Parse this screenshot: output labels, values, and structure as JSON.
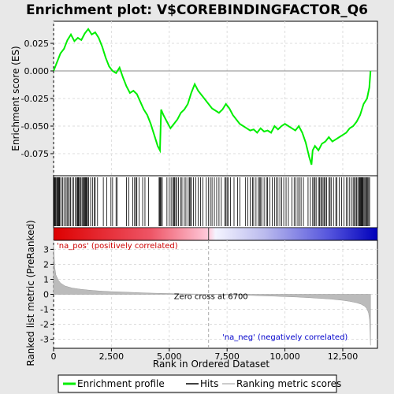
{
  "chart_data": {
    "type": "line",
    "title": "Enrichment plot: V$COREBINDINGFACTOR_Q6",
    "xlabel": "Rank in Ordered Dataset",
    "ylabel_top": "Enrichment score (ES)",
    "ylabel_bottom": "Ranked list metric (PreRanked)",
    "xlim": [
      0,
      14000
    ],
    "x_ticks": [
      0,
      2500,
      5000,
      7500,
      10000,
      12500
    ],
    "x_tick_labels": [
      "0",
      "2,500",
      "5,000",
      "7,500",
      "10,000",
      "12,500"
    ],
    "es_ylim": [
      -0.095,
      0.045
    ],
    "es_ticks": [
      -0.075,
      -0.05,
      -0.025,
      0.0,
      0.025
    ],
    "es_tick_labels": [
      "-0.075",
      "-0.050",
      "-0.025",
      "0.000",
      "0.025"
    ],
    "metric_ylim": [
      -3.6,
      3.6
    ],
    "metric_ticks": [
      -3,
      -2,
      -1,
      0,
      1,
      2,
      3
    ],
    "metric_tick_labels": [
      "-3",
      "-2",
      "-1",
      "0",
      "1",
      "2",
      "3"
    ],
    "zero_cross_rank": 6700,
    "zero_cross_label": "Zero cross at 6700",
    "pos_label": "'na_pos' (positively correlated)",
    "neg_label": "'na_neg' (negatively correlated)",
    "es_curve": {
      "x": [
        0,
        150,
        300,
        450,
        600,
        750,
        900,
        1050,
        1200,
        1350,
        1500,
        1650,
        1800,
        1950,
        2100,
        2250,
        2400,
        2550,
        2700,
        2850,
        3000,
        3150,
        3300,
        3450,
        3600,
        3750,
        3900,
        4050,
        4200,
        4350,
        4500,
        4600,
        4650,
        4750,
        4900,
        5050,
        5200,
        5350,
        5500,
        5650,
        5800,
        5950,
        6100,
        6250,
        6400,
        6550,
        6700,
        6850,
        7000,
        7150,
        7300,
        7450,
        7600,
        7750,
        7900,
        8050,
        8200,
        8350,
        8500,
        8650,
        8800,
        8950,
        9100,
        9250,
        9400,
        9550,
        9700,
        9850,
        10000,
        10150,
        10300,
        10450,
        10600,
        10750,
        10900,
        11050,
        11150,
        11200,
        11300,
        11450,
        11600,
        11750,
        11900,
        12050,
        12200,
        12350,
        12500,
        12650,
        12800,
        12950,
        13100,
        13250,
        13400,
        13550,
        13650,
        13700
      ],
      "y": [
        0.0,
        0.008,
        0.016,
        0.02,
        0.028,
        0.033,
        0.027,
        0.03,
        0.028,
        0.034,
        0.038,
        0.033,
        0.035,
        0.03,
        0.022,
        0.012,
        0.004,
        0.0,
        -0.002,
        0.003,
        -0.006,
        -0.014,
        -0.02,
        -0.018,
        -0.021,
        -0.028,
        -0.035,
        -0.04,
        -0.048,
        -0.058,
        -0.068,
        -0.072,
        -0.035,
        -0.04,
        -0.046,
        -0.052,
        -0.048,
        -0.044,
        -0.038,
        -0.035,
        -0.03,
        -0.02,
        -0.012,
        -0.018,
        -0.022,
        -0.026,
        -0.03,
        -0.034,
        -0.036,
        -0.038,
        -0.035,
        -0.03,
        -0.034,
        -0.04,
        -0.044,
        -0.048,
        -0.05,
        -0.052,
        -0.054,
        -0.053,
        -0.056,
        -0.052,
        -0.055,
        -0.054,
        -0.056,
        -0.05,
        -0.053,
        -0.05,
        -0.048,
        -0.05,
        -0.052,
        -0.054,
        -0.05,
        -0.056,
        -0.065,
        -0.078,
        -0.085,
        -0.072,
        -0.068,
        -0.072,
        -0.066,
        -0.064,
        -0.06,
        -0.064,
        -0.062,
        -0.06,
        -0.058,
        -0.056,
        -0.052,
        -0.05,
        -0.046,
        -0.04,
        -0.03,
        -0.025,
        -0.015,
        0.0
      ]
    },
    "metric_curve": {
      "x": [
        0,
        50,
        100,
        200,
        300,
        500,
        800,
        1200,
        1600,
        2000,
        2500,
        3000,
        3500,
        4000,
        4500,
        5000,
        5500,
        6000,
        6500,
        6700,
        7000,
        7500,
        8000,
        8500,
        9000,
        9500,
        10000,
        10500,
        11000,
        11500,
        12000,
        12500,
        12800,
        13100,
        13300,
        13450,
        13550,
        13620,
        13660,
        13700
      ],
      "y": [
        3.3,
        1.8,
        1.3,
        0.95,
        0.75,
        0.55,
        0.42,
        0.33,
        0.27,
        0.22,
        0.18,
        0.15,
        0.12,
        0.09,
        0.07,
        0.05,
        0.03,
        0.02,
        0.01,
        0.0,
        -0.01,
        -0.03,
        -0.05,
        -0.07,
        -0.1,
        -0.12,
        -0.15,
        -0.18,
        -0.22,
        -0.27,
        -0.32,
        -0.4,
        -0.47,
        -0.56,
        -0.66,
        -0.8,
        -0.98,
        -1.25,
        -1.7,
        -3.4
      ]
    },
    "hits": [
      30,
      60,
      90,
      130,
      160,
      190,
      210,
      240,
      270,
      330,
      390,
      450,
      520,
      580,
      620,
      680,
      730,
      800,
      870,
      940,
      1000,
      1030,
      1060,
      1090,
      1130,
      1180,
      1230,
      1270,
      1300,
      1340,
      1370,
      1400,
      1430,
      1470,
      1520,
      1600,
      1680,
      1760,
      1800,
      1900,
      2150,
      2300,
      2480,
      2550,
      2700,
      2750,
      3150,
      3250,
      3420,
      3500,
      3560,
      3600,
      3700,
      3850,
      3950,
      4100,
      4560,
      4590,
      4620,
      4650,
      4700,
      4900,
      5000,
      5080,
      5150,
      5200,
      5230,
      5280,
      5330,
      5400,
      5500,
      5550,
      5650,
      5720,
      5820,
      5880,
      5920,
      5960,
      6050,
      6150,
      6250,
      6350,
      6450,
      6600,
      6700,
      6780,
      6850,
      6950,
      7050,
      7150,
      7250,
      7400,
      7450,
      7500,
      7550,
      7650,
      7800,
      7950,
      8050,
      8300,
      8400,
      8500,
      8600,
      8650,
      8750,
      8850,
      8900,
      8950,
      9000,
      9100,
      9200,
      9250,
      9350,
      9450,
      9550,
      9620,
      9700,
      9780,
      9860,
      9950,
      10050,
      10150,
      10300,
      10400,
      10480,
      10560,
      10630,
      10700,
      10800,
      11000,
      11100,
      11200,
      11250,
      11300,
      11350,
      11450,
      11500,
      11550,
      11600,
      11650,
      11700,
      11750,
      11800,
      11900,
      11950,
      12000,
      12100,
      12200,
      12250,
      12350,
      12450,
      12550,
      12650,
      12720,
      12800,
      12880,
      12950,
      13000,
      13050,
      13100,
      13150,
      13200,
      13230,
      13260,
      13290,
      13320,
      13350,
      13380,
      13420,
      13460,
      13500,
      13540,
      13580,
      13620,
      13660
    ]
  },
  "legend": {
    "items": [
      {
        "label": "Enrichment profile",
        "color": "#00ff00"
      },
      {
        "label": "Hits",
        "color": "#000000"
      },
      {
        "label": "Ranking metric scores",
        "color": "#bbbbbb"
      }
    ]
  }
}
